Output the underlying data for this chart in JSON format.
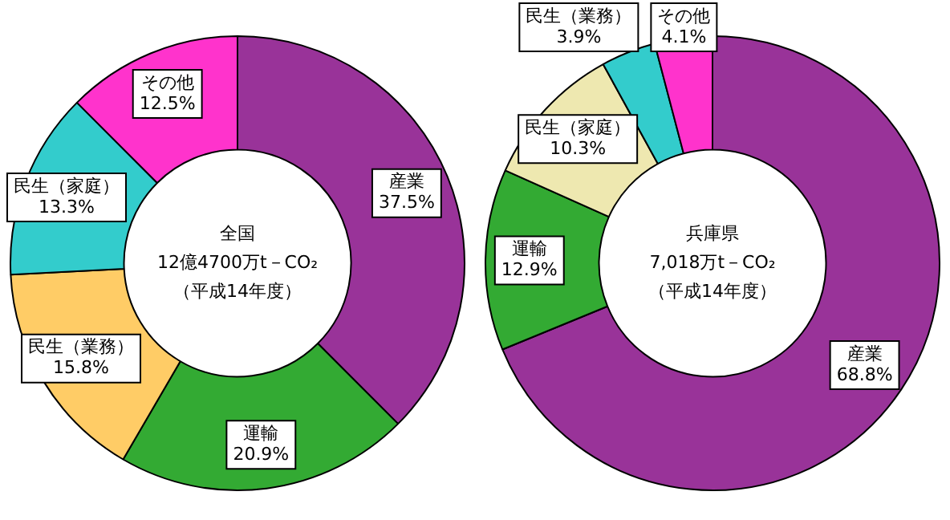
{
  "chart_data": [
    {
      "type": "donut",
      "categories": [
        "産業",
        "運輸",
        "民生（業務）",
        "民生（家庭）",
        "その他"
      ],
      "values": [
        37.5,
        20.9,
        15.8,
        13.3,
        12.5
      ],
      "colors": [
        "#993399",
        "#33aa33",
        "#ffcc66",
        "#33cccc",
        "#ff33cc"
      ],
      "value_labels": [
        "37.5%",
        "20.9%",
        "15.8%",
        "13.3%",
        "12.5%"
      ],
      "annotations": [
        "全国",
        "12億4700万t－CO₂",
        "（平成14年度）"
      ],
      "legend": false
    },
    {
      "type": "donut",
      "categories": [
        "産業",
        "運輸",
        "民生（家庭）",
        "民生（業務）",
        "その他"
      ],
      "values": [
        68.8,
        12.9,
        10.3,
        3.9,
        4.1
      ],
      "colors": [
        "#993399",
        "#33aa33",
        "#eee8b0",
        "#33cccc",
        "#ff33cc"
      ],
      "value_labels": [
        "68.8%",
        "12.9%",
        "10.3%",
        "3.9%",
        "4.1%"
      ],
      "annotations": [
        "兵庫県",
        "7,018万t－CO₂",
        "（平成14年度）"
      ],
      "legend": false
    }
  ]
}
